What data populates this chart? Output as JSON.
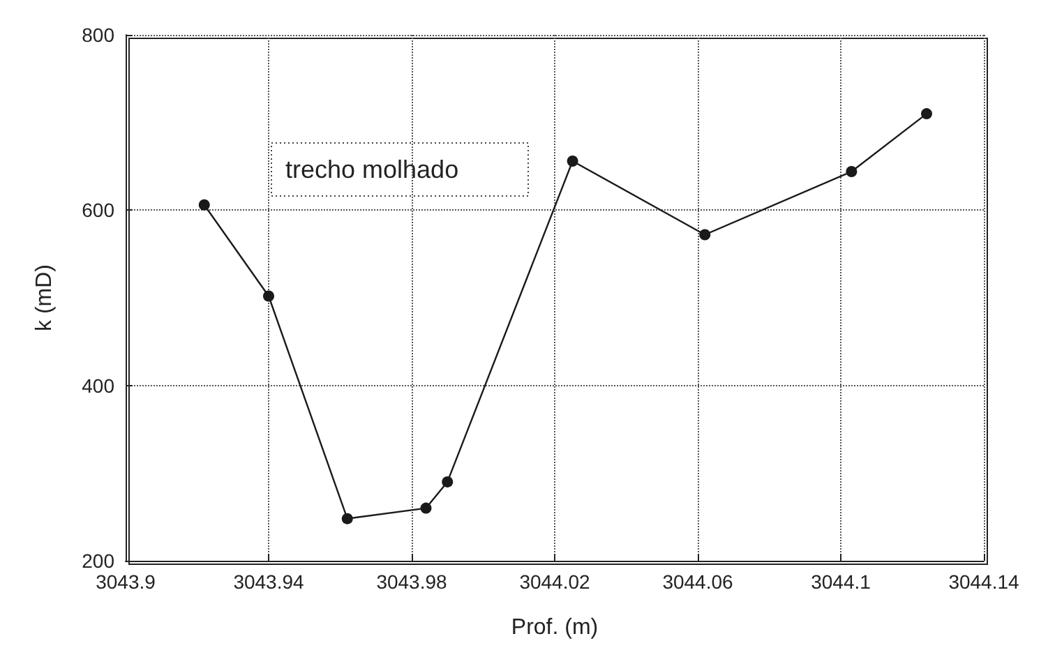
{
  "chart_data": {
    "type": "line",
    "xlabel": "Prof. (m)",
    "ylabel": "k (mD)",
    "annotations": [
      "trecho molhado"
    ],
    "x": [
      3043.922,
      3043.94,
      3043.962,
      3043.984,
      3043.99,
      3044.025,
      3044.062,
      3044.103,
      3044.124
    ],
    "series": [
      {
        "color": "#1a1a1a",
        "values": [
          606,
          502,
          248,
          260,
          290,
          656,
          572,
          644,
          710
        ]
      }
    ],
    "xlim": [
      3043.9,
      3044.14
    ],
    "xticks": [
      3043.9,
      3043.94,
      3043.98,
      3044.02,
      3044.06,
      3044.1,
      3044.14
    ],
    "ylim": [
      200,
      800
    ],
    "yticks": [
      200,
      400,
      600,
      800
    ],
    "grid": true,
    "marker": "circle",
    "line_style": "solid"
  }
}
